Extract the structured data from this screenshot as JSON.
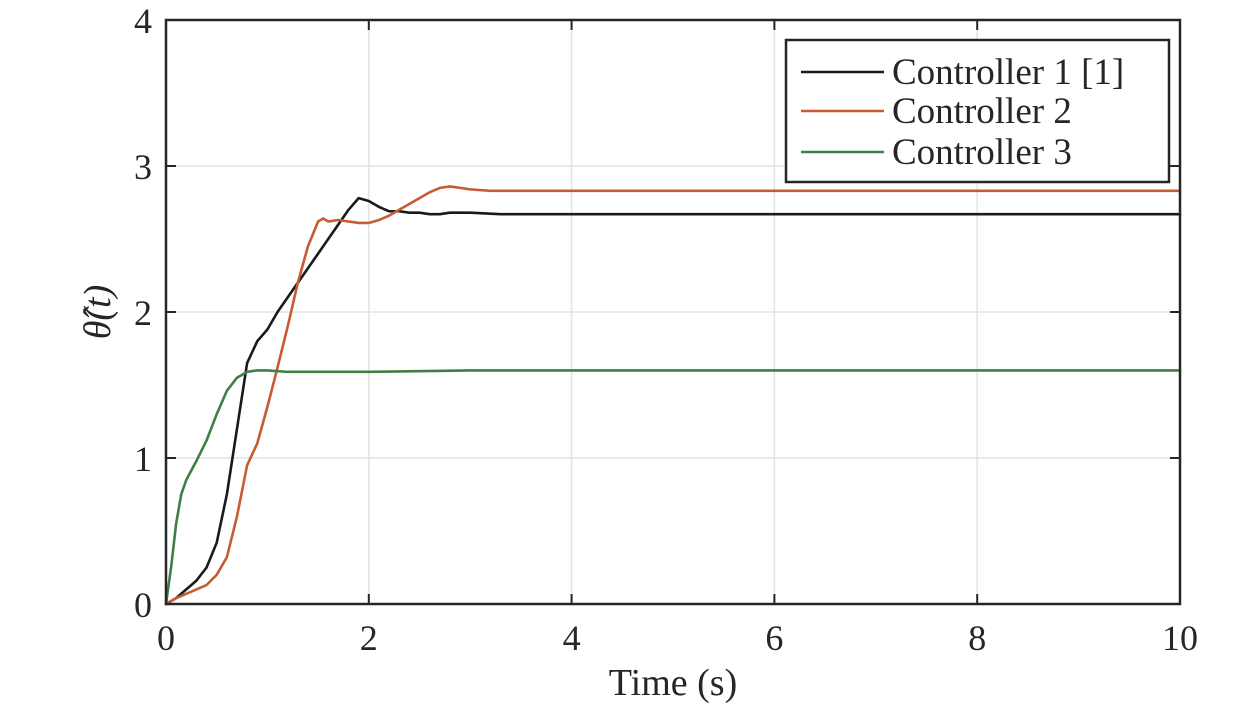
{
  "chart_data": {
    "type": "line",
    "xlabel": "Time (s)",
    "ylabel": "θ̂(t)",
    "xlim": [
      0,
      10
    ],
    "ylim": [
      0,
      4
    ],
    "xticks": [
      "0",
      "2",
      "4",
      "6",
      "8",
      "10"
    ],
    "yticks": [
      "0",
      "1",
      "2",
      "3",
      "4"
    ],
    "grid": true,
    "legend_position": "top-right",
    "series": [
      {
        "name": "Controller 1 [1]",
        "color": "#1a1a1a",
        "x": [
          0,
          0.1,
          0.2,
          0.3,
          0.4,
          0.5,
          0.6,
          0.7,
          0.8,
          0.9,
          1.0,
          1.1,
          1.2,
          1.3,
          1.4,
          1.5,
          1.6,
          1.7,
          1.8,
          1.9,
          2.0,
          2.1,
          2.2,
          2.3,
          2.4,
          2.5,
          2.6,
          2.7,
          2.8,
          2.9,
          3.0,
          3.3,
          4.0,
          5.0,
          6.0,
          7.0,
          8.0,
          9.0,
          10.0
        ],
        "y": [
          0,
          0.04,
          0.1,
          0.16,
          0.25,
          0.42,
          0.75,
          1.2,
          1.65,
          1.8,
          1.88,
          2.0,
          2.1,
          2.2,
          2.3,
          2.4,
          2.5,
          2.6,
          2.7,
          2.78,
          2.76,
          2.72,
          2.69,
          2.69,
          2.68,
          2.68,
          2.67,
          2.67,
          2.68,
          2.68,
          2.68,
          2.67,
          2.67,
          2.67,
          2.67,
          2.67,
          2.67,
          2.67,
          2.67
        ]
      },
      {
        "name": "Controller 2",
        "color": "#c75b33",
        "x": [
          0,
          0.1,
          0.2,
          0.3,
          0.4,
          0.5,
          0.6,
          0.7,
          0.8,
          0.9,
          1.0,
          1.1,
          1.2,
          1.3,
          1.4,
          1.5,
          1.55,
          1.6,
          1.7,
          1.8,
          1.9,
          2.0,
          2.1,
          2.2,
          2.3,
          2.4,
          2.5,
          2.6,
          2.7,
          2.8,
          2.9,
          3.0,
          3.2,
          3.5,
          4.0,
          5.0,
          6.0,
          7.0,
          8.0,
          9.0,
          10.0
        ],
        "y": [
          0,
          0.04,
          0.07,
          0.1,
          0.13,
          0.2,
          0.32,
          0.6,
          0.95,
          1.1,
          1.35,
          1.62,
          1.9,
          2.2,
          2.45,
          2.62,
          2.64,
          2.62,
          2.63,
          2.62,
          2.61,
          2.61,
          2.63,
          2.66,
          2.7,
          2.74,
          2.78,
          2.82,
          2.85,
          2.86,
          2.85,
          2.84,
          2.83,
          2.83,
          2.83,
          2.83,
          2.83,
          2.83,
          2.83,
          2.83,
          2.83
        ]
      },
      {
        "name": "Controller 3",
        "color": "#3f7f45",
        "x": [
          0,
          0.05,
          0.1,
          0.15,
          0.2,
          0.3,
          0.4,
          0.5,
          0.6,
          0.7,
          0.8,
          0.9,
          1.0,
          1.2,
          1.5,
          2.0,
          3.0,
          4.0,
          5.0,
          6.0,
          7.0,
          8.0,
          9.0,
          10.0
        ],
        "y": [
          0,
          0.25,
          0.55,
          0.75,
          0.85,
          0.98,
          1.12,
          1.3,
          1.46,
          1.55,
          1.59,
          1.6,
          1.6,
          1.59,
          1.59,
          1.59,
          1.6,
          1.6,
          1.6,
          1.6,
          1.6,
          1.6,
          1.6,
          1.6
        ]
      }
    ]
  }
}
